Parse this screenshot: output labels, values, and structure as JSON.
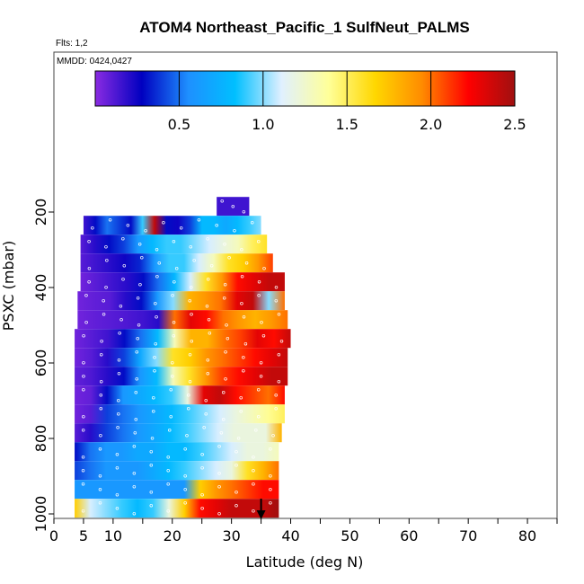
{
  "chart_data": {
    "type": "heatmap",
    "title": "ATOM4 Northeast_Pacific_1 SulfNeut_PALMS",
    "flights_label": "Flts: 1,2",
    "dates_label": "MMDD: 0424,0427",
    "xlabel": "Latitude (deg N)",
    "ylabel": "PSXC (mbar)",
    "xlim": [
      0,
      85
    ],
    "ylim": [
      1000,
      100
    ],
    "x_ticks_major": [
      0,
      10,
      20,
      30,
      40,
      50,
      60,
      70,
      80
    ],
    "x_ticks_minor": [
      5,
      15,
      25,
      35,
      45,
      55,
      65,
      75,
      85
    ],
    "x_tick_labels": [
      "0",
      "5",
      "10",
      "20",
      "30",
      "40",
      "50",
      "60",
      "70",
      "80"
    ],
    "x_tick_label_values": [
      0,
      5,
      10,
      20,
      30,
      40,
      50,
      60,
      70,
      80
    ],
    "y_ticks": [
      200,
      400,
      600,
      800,
      1000
    ],
    "y_tick_labels": [
      "200",
      "400",
      "600",
      "800",
      "1000"
    ],
    "colorbar": {
      "min": 0,
      "max": 2.5,
      "ticks": [
        0.5,
        1.0,
        1.5,
        2.0,
        2.5
      ],
      "tick_labels": [
        "0.5",
        "1.0",
        "1.5",
        "2.0",
        "2.5"
      ],
      "colors": [
        "#8a2be2",
        "#0000c0",
        "#1e90ff",
        "#00bfff",
        "#e0f0ff",
        "#ffff99",
        "#ffd700",
        "#ff8c00",
        "#ff0000",
        "#a01010"
      ]
    },
    "arrow_latitude": 35,
    "rows": [
      {
        "p": 185,
        "lat": [
          27.5,
          33
        ],
        "v": [
          0.15,
          0.15
        ]
      },
      {
        "p": 235,
        "lat": [
          5,
          35
        ],
        "v": [
          0.15,
          0.3,
          0.5,
          0.4,
          0.3,
          0.9,
          2.4,
          0.3,
          0.25,
          0.4,
          0.8,
          0.8,
          0.7,
          0.8,
          0.9,
          1.0
        ]
      },
      {
        "p": 285,
        "lat": [
          4.5,
          36
        ],
        "v": [
          0.1,
          0.2,
          0.3,
          0.4,
          0.6,
          0.8,
          0.9,
          0.9,
          1.0,
          1.1,
          1.2,
          1.3,
          1.5,
          1.6
        ]
      },
      {
        "p": 335,
        "lat": [
          4.5,
          37
        ],
        "v": [
          0.1,
          0.15,
          0.2,
          0.25,
          0.35,
          0.6,
          0.9,
          0.9,
          1.1,
          1.3,
          1.6,
          1.7,
          1.9,
          2.1
        ]
      },
      {
        "p": 385,
        "lat": [
          4.5,
          39
        ],
        "v": [
          0.05,
          0.1,
          0.15,
          0.2,
          0.3,
          0.5,
          0.8,
          1.1,
          1.6,
          1.9,
          2.2,
          2.3,
          2.4,
          2.4
        ]
      },
      {
        "p": 435,
        "lat": [
          4,
          39
        ],
        "v": [
          0.05,
          0.08,
          0.1,
          0.2,
          0.3,
          0.6,
          1.0,
          1.8,
          1.9,
          2.0,
          2.3,
          2.4,
          1.0,
          2.0
        ]
      },
      {
        "p": 485,
        "lat": [
          4,
          39.5
        ],
        "v": [
          0.05,
          0.08,
          0.1,
          0.12,
          0.15,
          0.2,
          2.0,
          2.3,
          2.2,
          2.0,
          1.9,
          1.8,
          1.9,
          2.0
        ]
      },
      {
        "p": 535,
        "lat": [
          3.5,
          40
        ],
        "v": [
          0.05,
          0.1,
          0.15,
          0.3,
          0.5,
          0.8,
          1.3,
          1.8,
          1.8,
          2.0,
          2.1,
          2.3,
          2.2,
          2.4
        ]
      },
      {
        "p": 585,
        "lat": [
          3.5,
          39.5
        ],
        "v": [
          0.05,
          0.1,
          0.2,
          0.4,
          0.7,
          1.0,
          1.6,
          1.7,
          1.9,
          2.0,
          2.1,
          2.2,
          2.3,
          2.4
        ]
      },
      {
        "p": 635,
        "lat": [
          3.5,
          39.5
        ],
        "v": [
          0.08,
          0.12,
          0.2,
          0.3,
          0.6,
          0.8,
          1.3,
          1.6,
          1.9,
          2.1,
          2.2,
          2.3,
          2.4,
          2.4
        ]
      },
      {
        "p": 685,
        "lat": [
          3.5,
          39
        ],
        "v": [
          0.05,
          0.08,
          0.3,
          0.6,
          0.7,
          0.8,
          0.9,
          1.2,
          2.3,
          2.4,
          2.2,
          2.1,
          2.0,
          2.2
        ]
      },
      {
        "p": 735,
        "lat": [
          3.5,
          39
        ],
        "v": [
          0.05,
          0.1,
          0.4,
          0.5,
          0.6,
          0.7,
          0.8,
          0.9,
          1.0,
          1.1,
          1.2,
          1.3,
          1.4,
          1.5
        ]
      },
      {
        "p": 785,
        "lat": [
          3.5,
          38.5
        ],
        "v": [
          0.1,
          0.2,
          0.4,
          0.5,
          0.6,
          0.7,
          0.8,
          0.9,
          1.0,
          1.1,
          1.2,
          1.2,
          1.2,
          1.8
        ]
      },
      {
        "p": 835,
        "lat": [
          3.5,
          38
        ],
        "v": [
          0.3,
          0.5,
          0.6,
          0.6,
          0.7,
          0.7,
          0.8,
          0.8,
          0.9,
          1.0,
          1.1,
          1.2,
          1.2,
          1.3
        ]
      },
      {
        "p": 885,
        "lat": [
          3.5,
          38
        ],
        "v": [
          0.4,
          0.5,
          0.6,
          0.6,
          0.6,
          0.7,
          0.8,
          0.9,
          1.0,
          1.1,
          1.2,
          1.6,
          1.8,
          2.0
        ]
      },
      {
        "p": 935,
        "lat": [
          3.5,
          38
        ],
        "v": [
          0.6,
          0.6,
          0.6,
          0.6,
          0.6,
          0.6,
          0.6,
          0.6,
          1.7,
          1.9,
          2.0,
          2.1,
          2.2,
          2.2
        ]
      },
      {
        "p": 985,
        "lat": [
          3.5,
          38
        ],
        "v": [
          1.7,
          1.1,
          1.0,
          0.9,
          0.8,
          0.9,
          1.2,
          1.7,
          2.2,
          2.3,
          2.4,
          2.4,
          2.4,
          2.5
        ]
      }
    ]
  }
}
